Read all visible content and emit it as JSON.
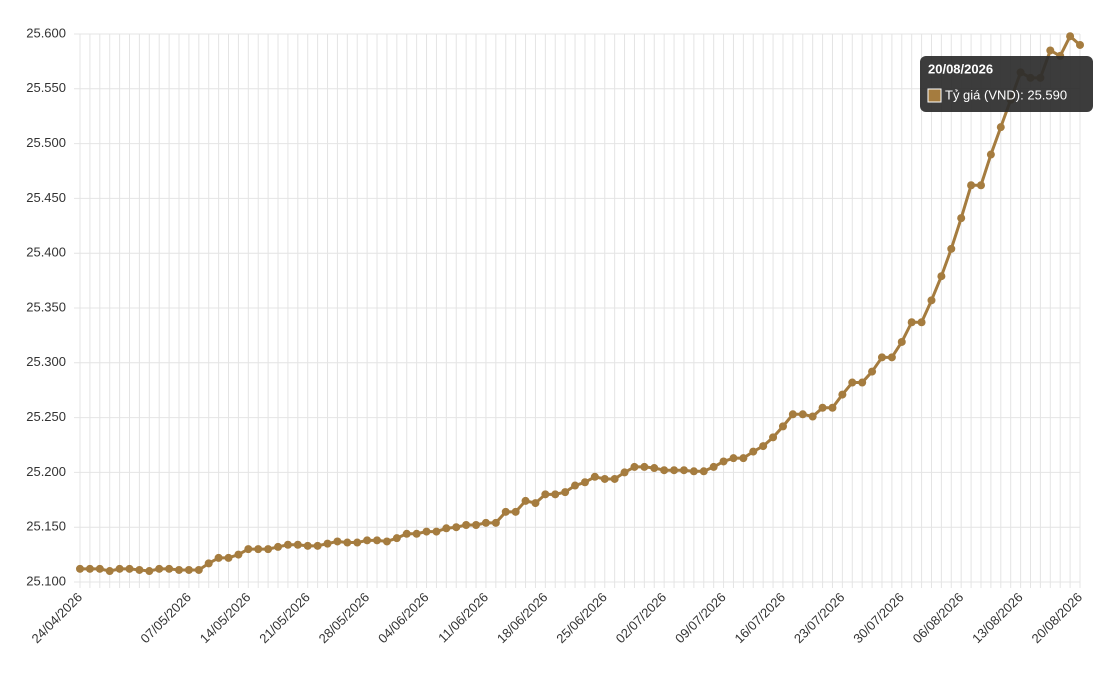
{
  "chart_data": {
    "type": "line",
    "categories": [
      "24/04/2026",
      null,
      null,
      null,
      null,
      null,
      null,
      null,
      null,
      null,
      null,
      "07/05/2026",
      null,
      null,
      null,
      null,
      null,
      "14/05/2026",
      null,
      null,
      null,
      null,
      null,
      "21/05/2026",
      null,
      null,
      null,
      null,
      null,
      "28/05/2026",
      null,
      null,
      null,
      null,
      null,
      "04/06/2026",
      null,
      null,
      null,
      null,
      null,
      "11/06/2026",
      null,
      null,
      null,
      null,
      null,
      "18/06/2026",
      null,
      null,
      null,
      null,
      null,
      "25/06/2026",
      null,
      null,
      null,
      null,
      null,
      "02/07/2026",
      null,
      null,
      null,
      null,
      null,
      "09/07/2026",
      null,
      null,
      null,
      null,
      null,
      "16/07/2026",
      null,
      null,
      null,
      null,
      null,
      "23/07/2026",
      null,
      null,
      null,
      null,
      null,
      "30/07/2026",
      null,
      null,
      null,
      null,
      null,
      "06/08/2026",
      null,
      null,
      null,
      null,
      null,
      "13/08/2026",
      null,
      null,
      null,
      null,
      null,
      "20/08/2026"
    ],
    "series": [
      {
        "name": "Tỷ giá (VND)",
        "color": "#a57c3f",
        "values": [
          25.112,
          25.112,
          25.112,
          25.11,
          25.112,
          25.112,
          25.111,
          25.11,
          25.112,
          25.112,
          25.111,
          25.111,
          25.111,
          25.117,
          25.122,
          25.122,
          25.125,
          25.13,
          25.13,
          25.13,
          25.132,
          25.134,
          25.134,
          25.133,
          25.133,
          25.135,
          25.137,
          25.136,
          25.136,
          25.138,
          25.138,
          25.137,
          25.14,
          25.144,
          25.144,
          25.146,
          25.146,
          25.149,
          25.15,
          25.152,
          25.152,
          25.154,
          25.154,
          25.164,
          25.164,
          25.174,
          25.172,
          25.18,
          25.18,
          25.182,
          25.188,
          25.191,
          25.196,
          25.194,
          25.194,
          25.2,
          25.205,
          25.205,
          25.204,
          25.202,
          25.202,
          25.202,
          25.201,
          25.201,
          25.205,
          25.21,
          25.213,
          25.213,
          25.219,
          25.224,
          25.232,
          25.242,
          25.253,
          25.253,
          25.251,
          25.259,
          25.259,
          25.271,
          25.282,
          25.282,
          25.292,
          25.305,
          25.305,
          25.319,
          25.337,
          25.337,
          25.357,
          25.379,
          25.404,
          25.432,
          25.462,
          25.462,
          25.49,
          25.515,
          25.54,
          25.565,
          25.56,
          25.56,
          25.585,
          25.58,
          25.598,
          25.59
        ]
      }
    ],
    "ylim": [
      25.1,
      25.6
    ],
    "yticks": [
      {
        "value": 25.1,
        "label": "25.100"
      },
      {
        "value": 25.15,
        "label": "25.150"
      },
      {
        "value": 25.2,
        "label": "25.200"
      },
      {
        "value": 25.25,
        "label": "25.250"
      },
      {
        "value": 25.3,
        "label": "25.300"
      },
      {
        "value": 25.35,
        "label": "25.350"
      },
      {
        "value": 25.4,
        "label": "25.400"
      },
      {
        "value": 25.45,
        "label": "25.450"
      },
      {
        "value": 25.5,
        "label": "25.500"
      },
      {
        "value": 25.55,
        "label": "25.550"
      },
      {
        "value": 25.6,
        "label": "25.600"
      }
    ],
    "grid": true,
    "tooltip": {
      "title": "20/08/2026",
      "label": "Tỷ giá (VND): 25.590"
    }
  }
}
